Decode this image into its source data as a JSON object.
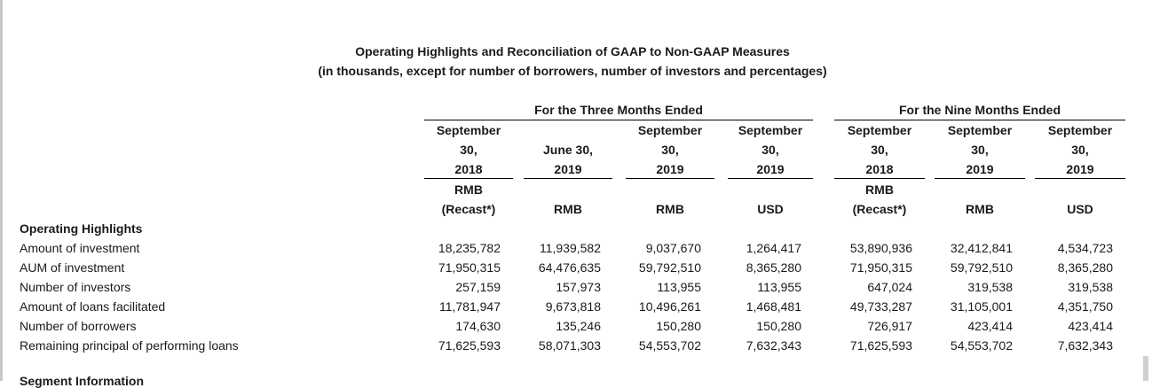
{
  "title": {
    "line1": "Operating Highlights and Reconciliation of GAAP to Non-GAAP Measures",
    "line2": "(in thousands, except for number of borrowers, number of investors and percentages)"
  },
  "groups": {
    "three_months": "For the Three Months Ended",
    "nine_months": "For the Nine Months Ended"
  },
  "columns": [
    {
      "date": [
        "September",
        "30,",
        "2018"
      ],
      "unit": [
        "RMB",
        "(Recast*)"
      ]
    },
    {
      "date": [
        "",
        "June 30,",
        "2019"
      ],
      "unit": [
        "",
        "RMB"
      ]
    },
    {
      "date": [
        "September",
        "30,",
        "2019"
      ],
      "unit": [
        "",
        "RMB"
      ]
    },
    {
      "date": [
        "September",
        "30,",
        "2019"
      ],
      "unit": [
        "",
        "USD"
      ]
    },
    {
      "date": [
        "September",
        "30,",
        "2018"
      ],
      "unit": [
        "RMB",
        "(Recast*)"
      ]
    },
    {
      "date": [
        "September",
        "30,",
        "2019"
      ],
      "unit": [
        "",
        "RMB"
      ]
    },
    {
      "date": [
        "September",
        "30,",
        "2019"
      ],
      "unit": [
        "",
        "USD"
      ]
    }
  ],
  "section_title": "Operating Highlights",
  "rows": [
    {
      "label": "Amount of investment",
      "values": [
        "18,235,782",
        "11,939,582",
        "9,037,670",
        "1,264,417",
        "53,890,936",
        "32,412,841",
        "4,534,723"
      ]
    },
    {
      "label": "AUM of investment",
      "values": [
        "71,950,315",
        "64,476,635",
        "59,792,510",
        "8,365,280",
        "71,950,315",
        "59,792,510",
        "8,365,280"
      ]
    },
    {
      "label": "Number of investors",
      "values": [
        "257,159",
        "157,973",
        "113,955",
        "113,955",
        "647,024",
        "319,538",
        "319,538"
      ]
    },
    {
      "label": "Amount of loans facilitated",
      "values": [
        "11,781,947",
        "9,673,818",
        "10,496,261",
        "1,468,481",
        "49,733,287",
        "31,105,001",
        "4,351,750"
      ]
    },
    {
      "label": "Number of borrowers",
      "values": [
        "174,630",
        "135,246",
        "150,280",
        "150,280",
        "726,917",
        "423,414",
        "423,414"
      ]
    },
    {
      "label": "Remaining principal of performing loans",
      "values": [
        "71,625,593",
        "58,071,303",
        "54,553,702",
        "7,632,343",
        "71,625,593",
        "54,553,702",
        "7,632,343"
      ]
    }
  ],
  "next_section": "Segment Information"
}
